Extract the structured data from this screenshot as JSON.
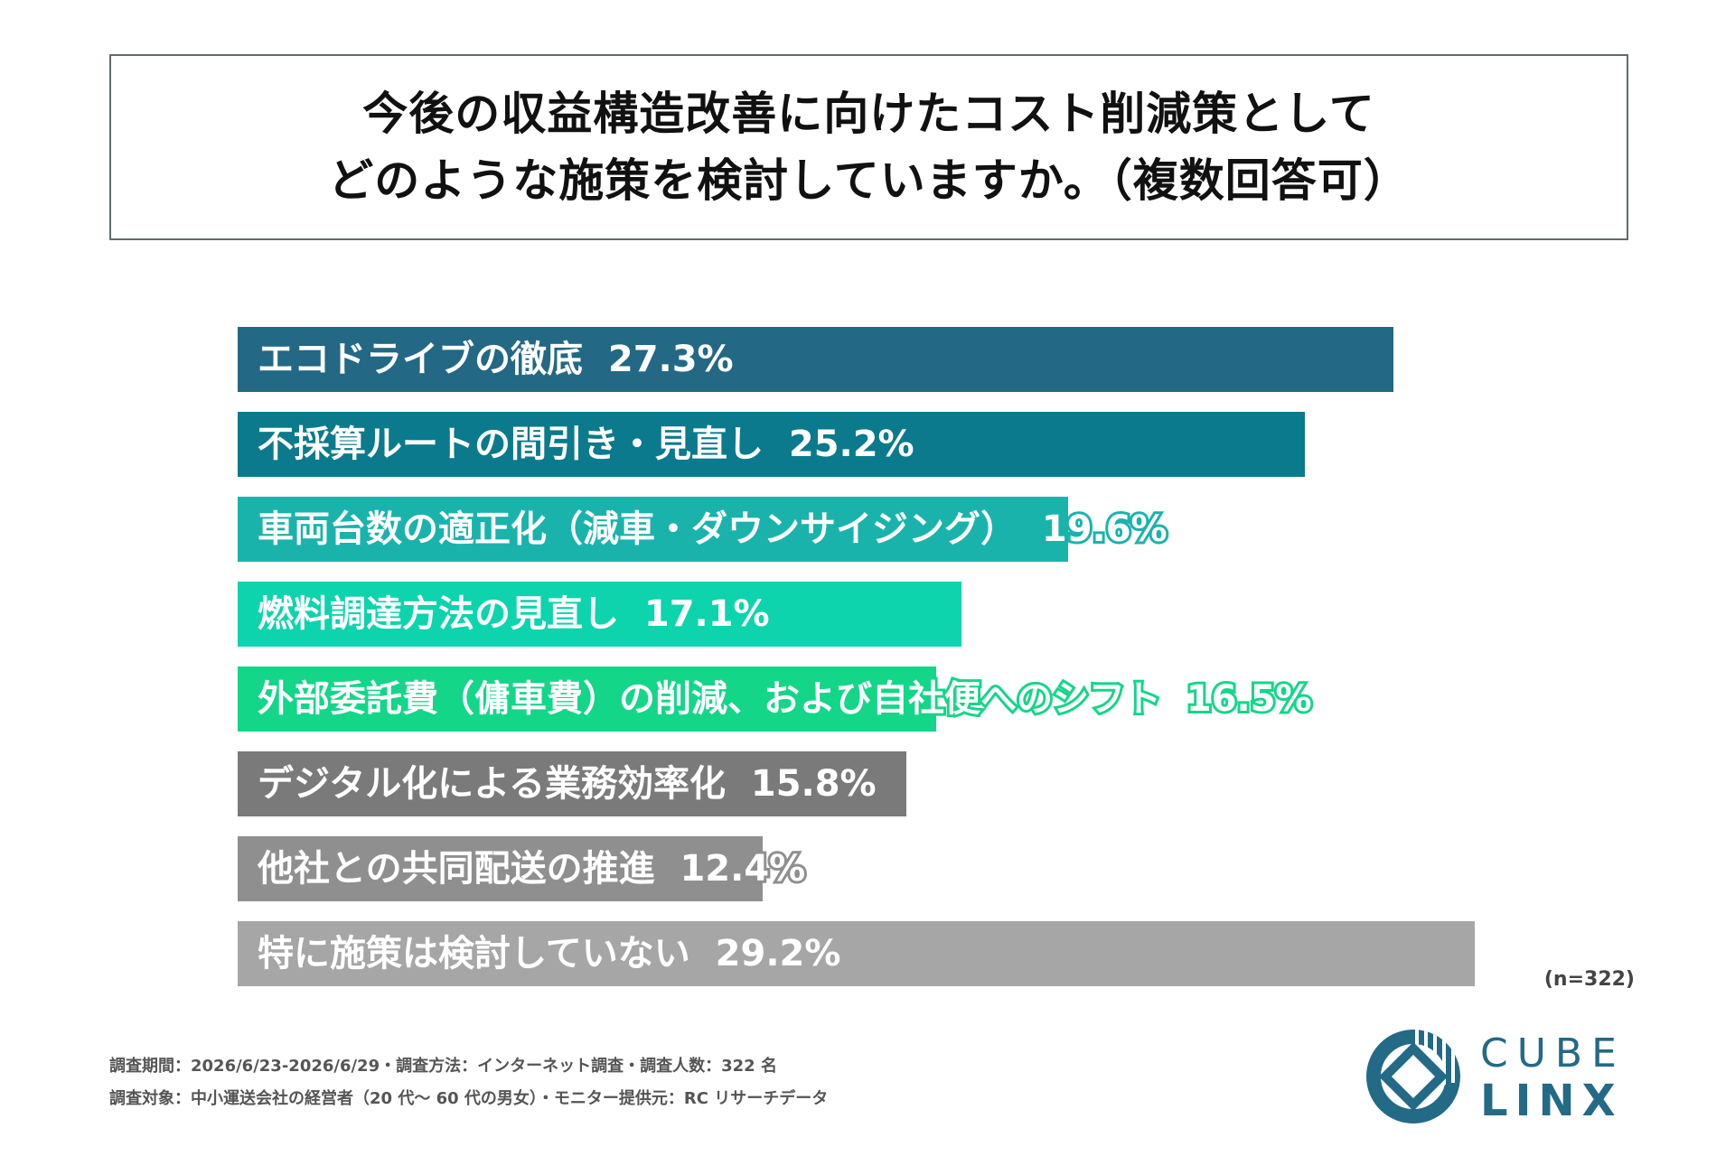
{
  "title": {
    "line1": "今後の収益構造改善に向けたコスト削減策として",
    "line2": "どのような施策を検討していますか。（複数回答可）"
  },
  "chart_data": {
    "type": "bar",
    "orientation": "horizontal",
    "categories": [
      "エコドライブの徹底",
      "不採算ルートの間引き・見直し",
      "車両台数の適正化（減車・ダウンサイジング）",
      "燃料調達方法の見直し",
      "外部委託費（傭車費）の削減、および自社便へのシフト",
      "デジタル化による業務効率化",
      "他社との共同配送の推進",
      "特に施策は検討していない"
    ],
    "values": [
      27.3,
      25.2,
      19.6,
      17.1,
      16.5,
      15.8,
      12.4,
      29.2
    ],
    "value_labels": [
      "27.3%",
      "25.2%",
      "19.6%",
      "17.1%",
      "16.5%",
      "15.8%",
      "12.4%",
      "29.2%"
    ],
    "colors": [
      "#236885",
      "#0b7a8c",
      "#1ab3ac",
      "#0dd4ad",
      "#14d689",
      "#7a7a7a",
      "#8f8f8f",
      "#a6a6a6"
    ],
    "xlim": [
      0,
      30
    ],
    "n_label": "(n=322)"
  },
  "footer": {
    "line1": "調査期間：2026/6/23-2026/6/29・調査方法：インターネット調査・調査人数：322 名",
    "line2": "調査対象：中小運送会社の経営者（20 代～ 60 代の男女）・モニター提供元：RC リサーチデータ"
  },
  "logo": {
    "line1": "CUBE",
    "line2": "LINX",
    "color": "#236a86"
  }
}
